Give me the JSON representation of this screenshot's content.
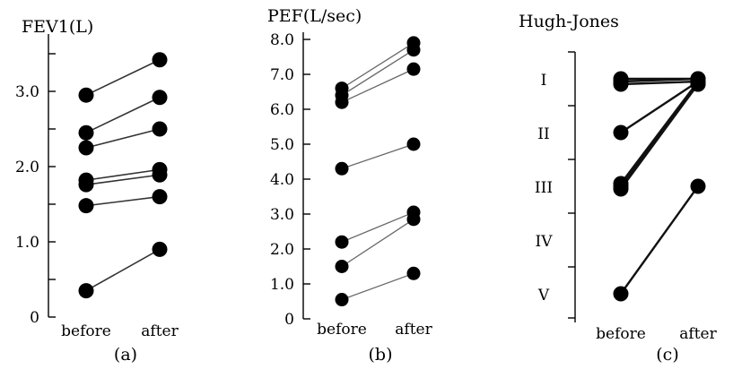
{
  "chart_data": [
    {
      "type": "line",
      "title": "FEV1(L)",
      "panel_label": "(a)",
      "categories": [
        "before",
        "after"
      ],
      "ylim": [
        0,
        3.6
      ],
      "yticks": [
        0,
        1.0,
        2.0,
        3.0
      ],
      "ytick_labels": [
        "0",
        "1.0",
        "2.0",
        "3.0"
      ],
      "series": [
        {
          "values": [
            2.95,
            3.42
          ]
        },
        {
          "values": [
            2.45,
            2.92
          ]
        },
        {
          "values": [
            2.25,
            2.5
          ]
        },
        {
          "values": [
            1.82,
            1.96
          ]
        },
        {
          "values": [
            1.76,
            1.89
          ]
        },
        {
          "values": [
            1.48,
            1.6
          ]
        },
        {
          "values": [
            0.35,
            0.9
          ]
        }
      ]
    },
    {
      "type": "line",
      "title": "PEF(L/sec)",
      "panel_label": "(b)",
      "categories": [
        "before",
        "after"
      ],
      "ylim": [
        0,
        8.0
      ],
      "yticks": [
        0,
        1.0,
        2.0,
        3.0,
        4.0,
        5.0,
        6.0,
        7.0,
        8.0
      ],
      "ytick_labels": [
        "0",
        "1.0",
        "2.0",
        "3.0",
        "4.0",
        "5.0",
        "6.0",
        "7.0",
        "8.0"
      ],
      "series": [
        {
          "values": [
            6.6,
            7.9
          ]
        },
        {
          "values": [
            6.4,
            7.7
          ]
        },
        {
          "values": [
            6.2,
            7.15
          ]
        },
        {
          "values": [
            4.3,
            5.0
          ]
        },
        {
          "values": [
            2.2,
            3.05
          ]
        },
        {
          "values": [
            1.5,
            2.85
          ]
        },
        {
          "values": [
            0.55,
            1.3
          ]
        }
      ]
    },
    {
      "type": "line",
      "title": "Hugh-Jones",
      "panel_label": "(c)",
      "categories": [
        "before",
        "after"
      ],
      "ylim": [
        5.5,
        0.5
      ],
      "yticks": [
        1,
        2,
        3,
        4,
        5
      ],
      "ytick_labels": [
        "I",
        "II",
        "III",
        "IV",
        "V"
      ],
      "series": [
        {
          "values": [
            1,
            1
          ]
        },
        {
          "values": [
            1.05,
            1
          ]
        },
        {
          "values": [
            1.1,
            1.05
          ]
        },
        {
          "values": [
            2,
            1.05
          ]
        },
        {
          "values": [
            2.95,
            1.05
          ]
        },
        {
          "values": [
            3.0,
            1.1
          ]
        },
        {
          "values": [
            3.05,
            1.1
          ]
        },
        {
          "values": [
            5,
            3
          ]
        }
      ]
    }
  ]
}
